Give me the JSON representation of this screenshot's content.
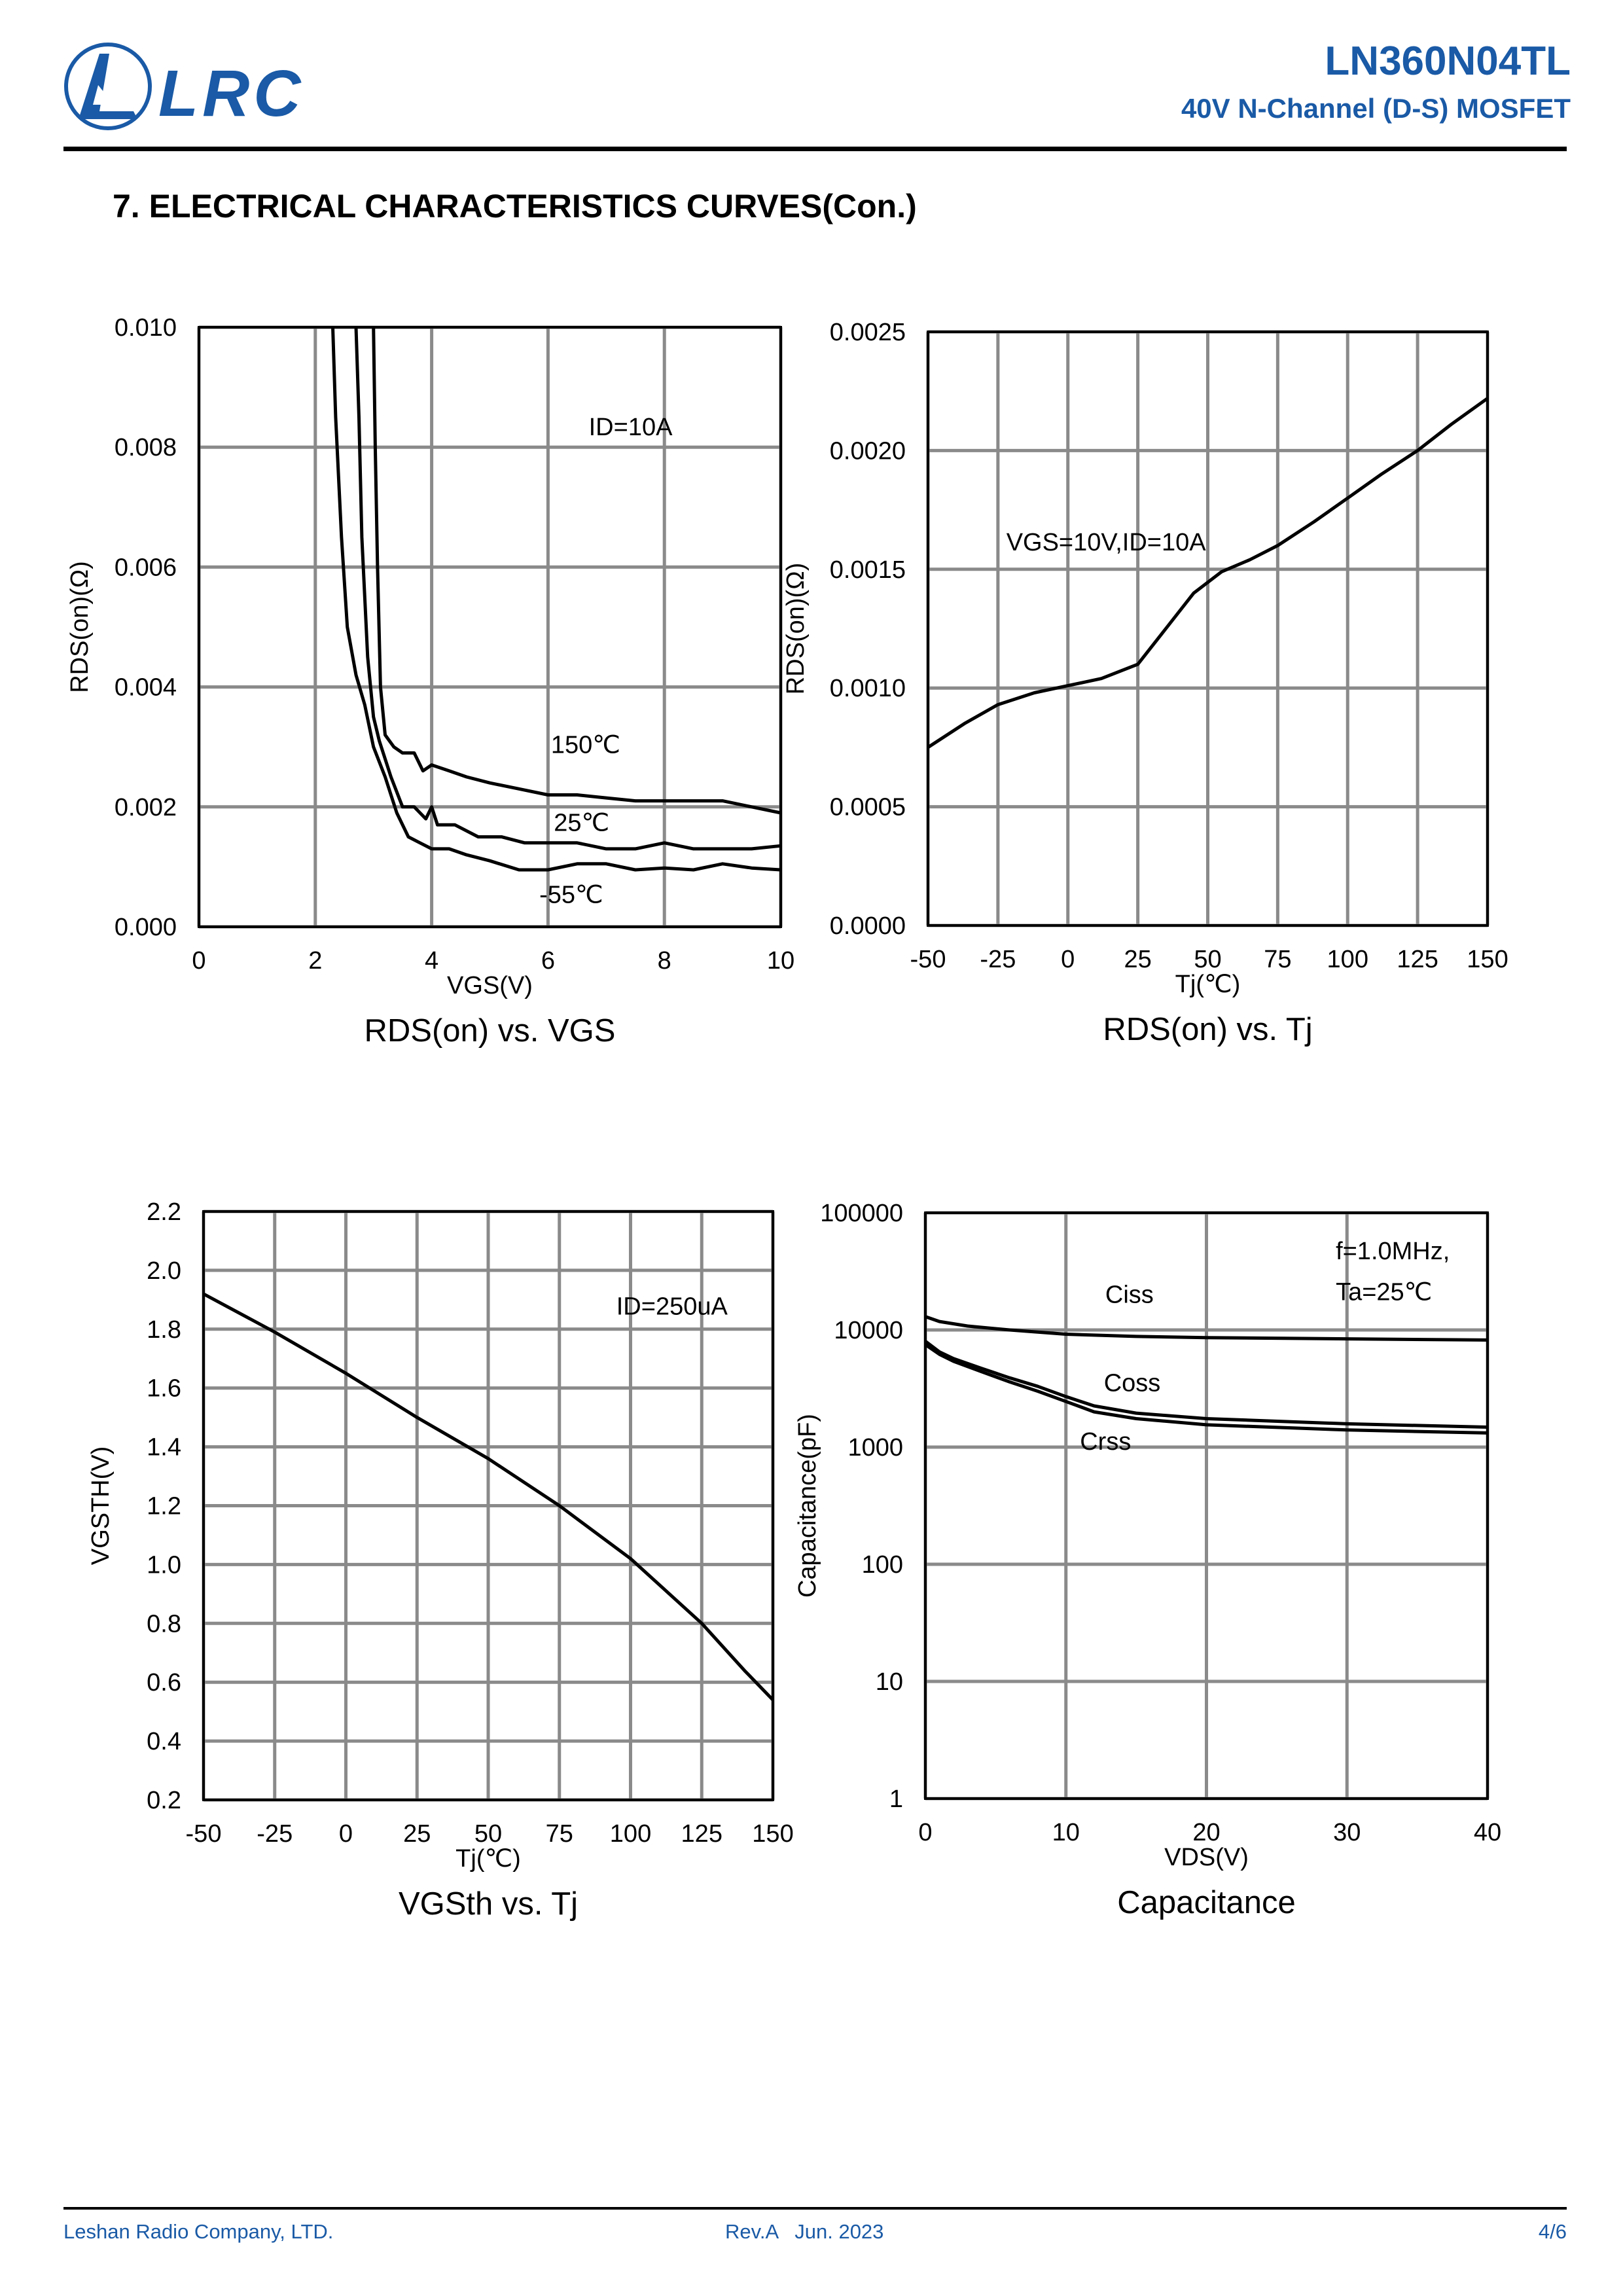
{
  "header": {
    "logo_text": "LRC",
    "part_number": "LN360N04TL",
    "description": "40V N-Channel (D-S) MOSFET",
    "brand_color": "#1a5aa6"
  },
  "section_title": "7. ELECTRICAL CHARACTERISTICS CURVES(Con.)",
  "footer": {
    "company": "Leshan Radio Company, LTD.",
    "revision": "Rev.A   Jun. 2023",
    "page": "4/6"
  },
  "chart_data": [
    {
      "type": "line",
      "title": "RDS(on) vs. VGS",
      "xlabel": "VGS(V)",
      "ylabel": "RDS(on)(Ω)",
      "xlim": [
        0,
        10
      ],
      "ylim": [
        0,
        0.01
      ],
      "yscale": "linear",
      "grid": true,
      "xticks": [
        0,
        2,
        4,
        6,
        8,
        10
      ],
      "xtick_labels": [
        "0",
        "2",
        "4",
        "6",
        "8",
        "10"
      ],
      "yticks": [
        0,
        0.002,
        0.004,
        0.006,
        0.008,
        0.01
      ],
      "ytick_labels": [
        "0.000",
        "0.002",
        "0.004",
        "0.006",
        "0.008",
        "0.010"
      ],
      "annotations": [
        {
          "text": "ID=10A",
          "x": 6.7,
          "y": 0.0082
        },
        {
          "text": "150℃",
          "x": 6.05,
          "y": 0.0029
        },
        {
          "text": "25℃",
          "x": 6.1,
          "y": 0.0016
        },
        {
          "text": "-55℃",
          "x": 5.85,
          "y": 0.0004
        }
      ],
      "series": [
        {
          "name": "-55℃",
          "x": [
            2.3,
            2.35,
            2.45,
            2.55,
            2.7,
            2.85,
            3.0,
            3.2,
            3.4,
            3.6,
            3.8,
            4.0,
            4.3,
            4.6,
            5.0,
            5.5,
            6.0,
            6.5,
            7.0,
            7.5,
            8.0,
            8.5,
            9.0,
            9.5,
            10.0
          ],
          "y": [
            0.01,
            0.0085,
            0.0065,
            0.005,
            0.0042,
            0.0037,
            0.003,
            0.0025,
            0.0019,
            0.0015,
            0.0014,
            0.0013,
            0.0013,
            0.0012,
            0.0011,
            0.00095,
            0.00095,
            0.00105,
            0.00105,
            0.00095,
            0.00098,
            0.00095,
            0.00105,
            0.00098,
            0.00095
          ]
        },
        {
          "name": "25℃",
          "x": [
            2.7,
            2.75,
            2.8,
            2.9,
            3.0,
            3.1,
            3.3,
            3.5,
            3.7,
            3.9,
            4.0,
            4.1,
            4.4,
            4.8,
            5.2,
            5.6,
            6.0,
            6.5,
            7.0,
            7.5,
            8.0,
            8.5,
            9.0,
            9.5,
            10.0
          ],
          "y": [
            0.01,
            0.0085,
            0.0065,
            0.0045,
            0.0035,
            0.0031,
            0.0025,
            0.002,
            0.002,
            0.0018,
            0.002,
            0.0017,
            0.0017,
            0.0015,
            0.0015,
            0.0014,
            0.0014,
            0.0014,
            0.0013,
            0.0013,
            0.0014,
            0.0013,
            0.0013,
            0.0013,
            0.00135
          ]
        },
        {
          "name": "150℃",
          "x": [
            3.0,
            3.03,
            3.07,
            3.12,
            3.2,
            3.35,
            3.5,
            3.7,
            3.85,
            4.0,
            4.3,
            4.6,
            5.0,
            5.5,
            6.0,
            6.5,
            7.0,
            7.5,
            8.0,
            8.5,
            9.0,
            9.5,
            10.0
          ],
          "y": [
            0.01,
            0.008,
            0.006,
            0.004,
            0.0032,
            0.003,
            0.0029,
            0.0029,
            0.0026,
            0.0027,
            0.0026,
            0.0025,
            0.0024,
            0.0023,
            0.0022,
            0.0022,
            0.00215,
            0.0021,
            0.0021,
            0.0021,
            0.0021,
            0.002,
            0.0019
          ]
        }
      ]
    },
    {
      "type": "line",
      "title": "RDS(on) vs. Tj",
      "xlabel": "Tj(℃)",
      "ylabel": "RDS(on)(Ω)",
      "xlim": [
        -50,
        150
      ],
      "ylim": [
        0,
        0.0025
      ],
      "yscale": "linear",
      "grid": true,
      "xticks": [
        -50,
        -25,
        0,
        25,
        50,
        75,
        100,
        125,
        150
      ],
      "xtick_labels": [
        "-50",
        "-25",
        "0",
        "25",
        "50",
        "75",
        "100",
        "125",
        "150"
      ],
      "yticks": [
        0,
        0.0005,
        0.001,
        0.0015,
        0.002,
        0.0025
      ],
      "ytick_labels": [
        "0.0000",
        "0.0005",
        "0.0010",
        "0.0015",
        "0.0020",
        "0.0025"
      ],
      "annotations": [
        {
          "text": "VGS=10V,ID=10A",
          "x": -22,
          "y": 0.00158
        }
      ],
      "series": [
        {
          "name": "RDS(on)",
          "x": [
            -50,
            -37,
            -25,
            -12,
            0,
            12,
            25,
            35,
            45,
            55,
            65,
            75,
            88,
            100,
            112,
            125,
            137,
            150
          ],
          "y": [
            0.00075,
            0.00085,
            0.00093,
            0.00098,
            0.00101,
            0.00104,
            0.0011,
            0.00125,
            0.0014,
            0.00149,
            0.00154,
            0.0016,
            0.0017,
            0.0018,
            0.0019,
            0.002,
            0.00211,
            0.00222
          ]
        }
      ]
    },
    {
      "type": "line",
      "title": "VGSth vs. Tj",
      "xlabel": "Tj(℃)",
      "ylabel": "VGSTH(V)",
      "xlim": [
        -50,
        150
      ],
      "ylim": [
        0.2,
        2.2
      ],
      "yscale": "linear",
      "grid": true,
      "xticks": [
        -50,
        -25,
        0,
        25,
        50,
        75,
        100,
        125,
        150
      ],
      "xtick_labels": [
        "-50",
        "-25",
        "0",
        "25",
        "50",
        "75",
        "100",
        "125",
        "150"
      ],
      "yticks": [
        0.2,
        0.4,
        0.6,
        0.8,
        1.0,
        1.2,
        1.4,
        1.6,
        1.8,
        2.0,
        2.2
      ],
      "ytick_labels": [
        "0.2",
        "0.4",
        "0.6",
        "0.8",
        "1.0",
        "1.2",
        "1.4",
        "1.6",
        "1.8",
        "2.0",
        "2.2"
      ],
      "annotations": [
        {
          "text": "ID=250uA",
          "x": 95,
          "y": 1.85
        }
      ],
      "series": [
        {
          "name": "VGSth",
          "x": [
            -50,
            -25,
            0,
            25,
            50,
            75,
            100,
            125,
            140,
            150
          ],
          "y": [
            1.92,
            1.79,
            1.65,
            1.5,
            1.36,
            1.2,
            1.02,
            0.8,
            0.64,
            0.54
          ]
        }
      ]
    },
    {
      "type": "line",
      "title": "Capacitance",
      "xlabel": "VDS(V)",
      "ylabel": "Capacitance(pF)",
      "xlim": [
        0,
        40
      ],
      "ylim": [
        1,
        100000
      ],
      "yscale": "log",
      "grid": true,
      "xticks": [
        0,
        10,
        20,
        30,
        40
      ],
      "xtick_labels": [
        "0",
        "10",
        "20",
        "30",
        "40"
      ],
      "yticks": [
        1,
        10,
        100,
        1000,
        10000,
        100000
      ],
      "ytick_labels": [
        "1",
        "10",
        "100",
        "1000",
        "10000",
        "100000"
      ],
      "annotations": [
        {
          "text": "f=1.0MHz,",
          "x": 29.2,
          "y": 40000
        },
        {
          "text": "Ta=25℃",
          "x": 29.2,
          "y": 18000
        },
        {
          "text": "Ciss",
          "x": 12.8,
          "y": 17000
        },
        {
          "text": "Coss",
          "x": 12.7,
          "y": 3000
        },
        {
          "text": "Crss",
          "x": 11,
          "y": 950
        }
      ],
      "series": [
        {
          "name": "Ciss",
          "x": [
            0,
            1,
            3,
            6,
            10,
            15,
            20,
            30,
            40
          ],
          "y": [
            13000,
            11800,
            10800,
            10000,
            9200,
            8800,
            8600,
            8400,
            8200
          ]
        },
        {
          "name": "Coss",
          "x": [
            0,
            1,
            2,
            4,
            6,
            8,
            10,
            12,
            15,
            20,
            30,
            40
          ],
          "y": [
            8000,
            6500,
            5700,
            4700,
            3900,
            3300,
            2700,
            2250,
            1950,
            1750,
            1580,
            1480
          ]
        },
        {
          "name": "Crss",
          "x": [
            0,
            1,
            2,
            4,
            6,
            8,
            10,
            12,
            15,
            20,
            30,
            40
          ],
          "y": [
            7500,
            6200,
            5400,
            4400,
            3600,
            3000,
            2450,
            2000,
            1750,
            1550,
            1400,
            1320
          ]
        }
      ]
    }
  ]
}
